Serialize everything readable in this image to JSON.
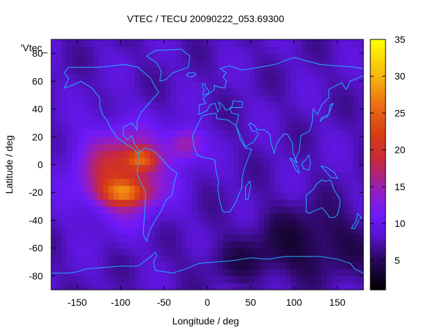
{
  "chart_data": {
    "type": "heatmap",
    "title": "VTEC / TECU 20090222_053.69300",
    "xlabel": "Longitude / deg",
    "ylabel": "Latitude / deg",
    "series_label": "'Vtec_",
    "xlim": [
      -180,
      180
    ],
    "ylim": [
      -90,
      90
    ],
    "x_ticks": [
      -150,
      -100,
      -50,
      0,
      50,
      100,
      150
    ],
    "y_ticks": [
      -80,
      -60,
      -40,
      -20,
      0,
      20,
      40,
      60,
      80
    ],
    "colorbar": {
      "min": 1,
      "max": 35,
      "ticks": [
        5,
        10,
        15,
        20,
        25,
        30,
        35
      ],
      "colormap": "gnuplot-hot (black-purple-red-orange-yellow)",
      "palette": [
        "#000000",
        "#3a0a6a",
        "#6a14ff",
        "#9a20c8",
        "#d0301a",
        "#e86810",
        "#f8c010",
        "#ffff00"
      ]
    },
    "background_value": 8,
    "features": [
      {
        "name": "equatorial anomaly (south crest)",
        "lon": -90,
        "lat": -22,
        "peak": 33
      },
      {
        "name": "equatorial anomaly (north crest)",
        "lon": -80,
        "lat": 4,
        "peak": 33
      },
      {
        "name": "daytime enhancement region",
        "lon": -100,
        "lat": -5,
        "peak": 22
      },
      {
        "name": "atlantic extension",
        "lon": -25,
        "lat": 15,
        "peak": 18
      },
      {
        "name": "southern low region",
        "lon": 120,
        "lat": -55,
        "peak": 4
      }
    ],
    "grid": false
  },
  "coastline_color": "#1eb4ff"
}
